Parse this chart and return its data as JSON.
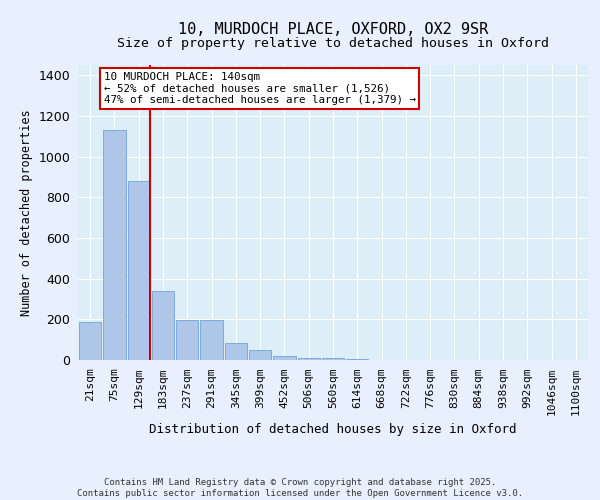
{
  "title_line1": "10, MURDOCH PLACE, OXFORD, OX2 9SR",
  "title_line2": "Size of property relative to detached houses in Oxford",
  "xlabel": "Distribution of detached houses by size in Oxford",
  "ylabel": "Number of detached properties",
  "bar_labels": [
    "21sqm",
    "75sqm",
    "129sqm",
    "183sqm",
    "237sqm",
    "291sqm",
    "345sqm",
    "399sqm",
    "452sqm",
    "506sqm",
    "560sqm",
    "614sqm",
    "668sqm",
    "722sqm",
    "776sqm",
    "830sqm",
    "884sqm",
    "938sqm",
    "992sqm",
    "1046sqm",
    "1100sqm"
  ],
  "bar_values": [
    185,
    1130,
    880,
    340,
    195,
    195,
    85,
    50,
    18,
    10,
    8,
    3,
    0,
    0,
    0,
    0,
    0,
    0,
    0,
    0,
    0
  ],
  "bar_color": "#aec7e8",
  "bar_edgecolor": "#5b9bd5",
  "bg_color": "#e8f0fe",
  "plot_bg_color": "#ddeef8",
  "grid_color": "#ffffff",
  "annotation_box_text": "10 MURDOCH PLACE: 140sqm\n← 52% of detached houses are smaller (1,526)\n47% of semi-detached houses are larger (1,379) →",
  "annotation_box_color": "#cc0000",
  "vline_bin_index": 2,
  "vline_color": "#cc0000",
  "ylim": [
    0,
    1450
  ],
  "yticks": [
    0,
    200,
    400,
    600,
    800,
    1000,
    1200,
    1400
  ],
  "footer_line1": "Contains HM Land Registry data © Crown copyright and database right 2025.",
  "footer_line2": "Contains public sector information licensed under the Open Government Licence v3.0."
}
